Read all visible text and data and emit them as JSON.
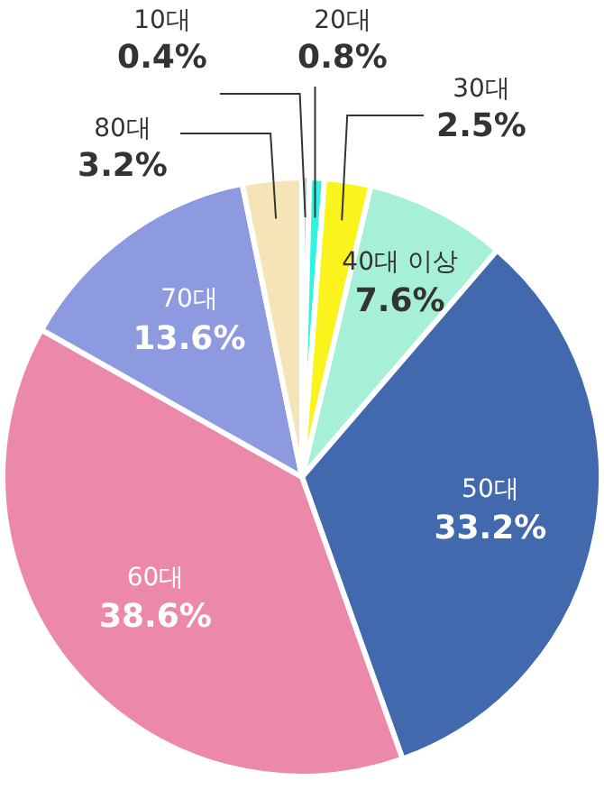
{
  "chart_data": {
    "type": "pie",
    "categories": [
      "10대",
      "20대",
      "30대",
      "40대 이상",
      "50대",
      "60대",
      "70대",
      "80대"
    ],
    "values": [
      0.4,
      0.8,
      2.5,
      7.6,
      33.2,
      38.6,
      13.6,
      3.2
    ],
    "value_labels": [
      "0.4%",
      "0.8%",
      "2.5%",
      "7.6%",
      "33.2%",
      "38.6%",
      "13.6%",
      "3.2%"
    ],
    "colors": [
      "#c8c8c8",
      "#2ef5e0",
      "#fbf41c",
      "#a5f0d6",
      "#4269ad",
      "#ec89ab",
      "#8d9ae0",
      "#f5e4b7"
    ],
    "legend": false
  }
}
